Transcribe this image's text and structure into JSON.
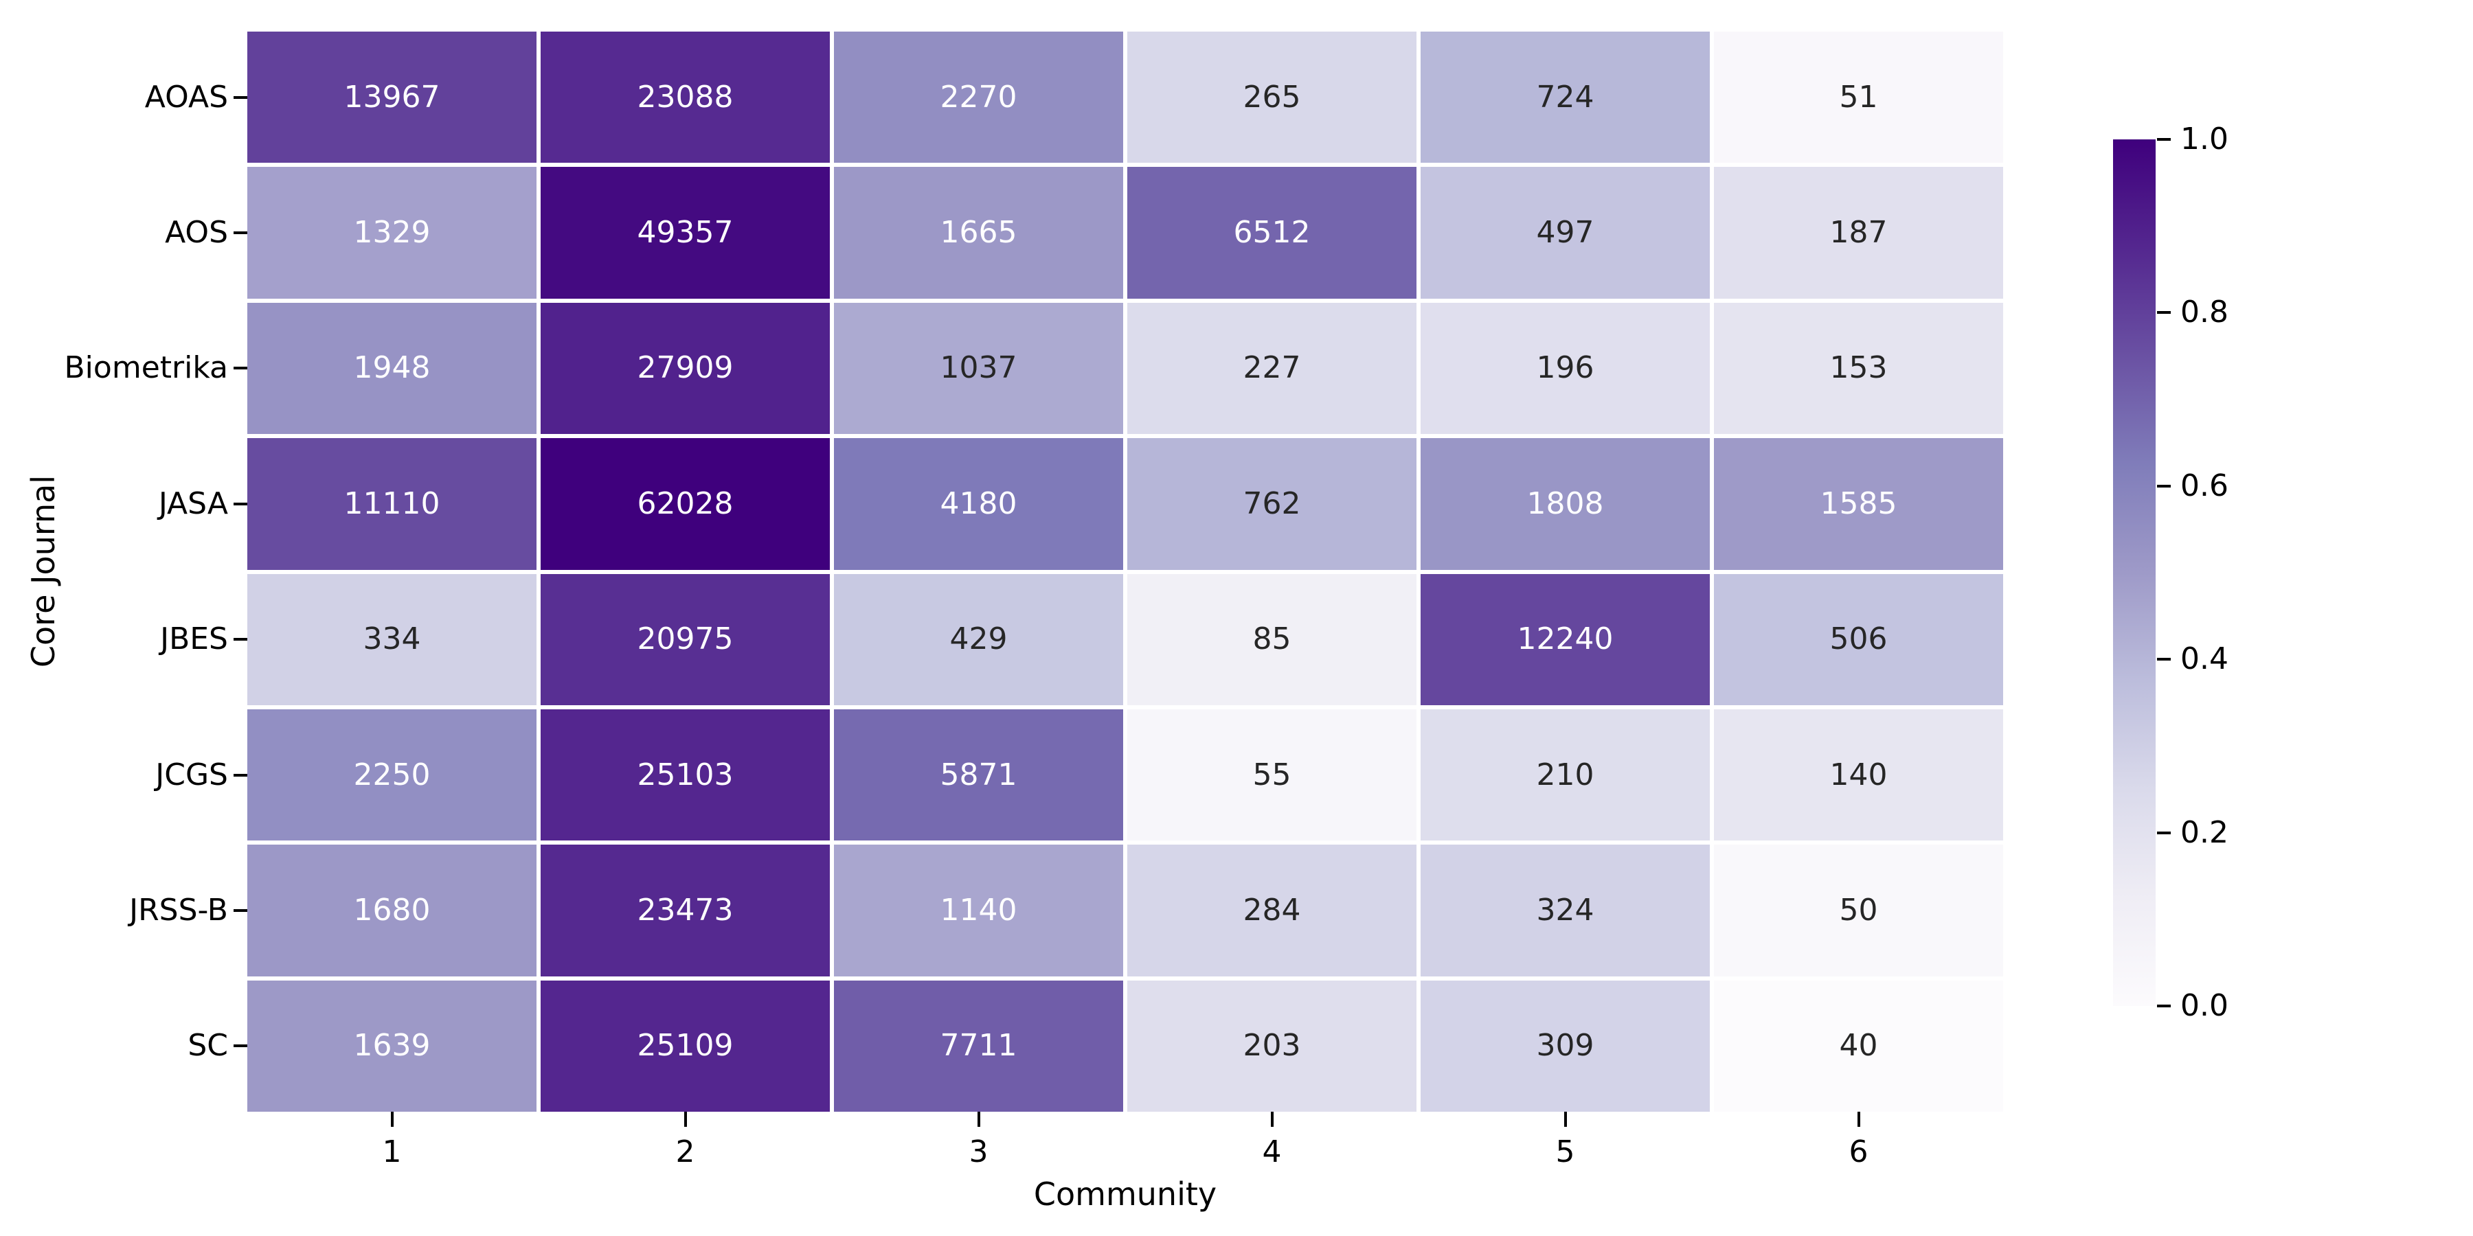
{
  "chart_data": {
    "type": "heatmap",
    "title": "",
    "xlabel": "Community",
    "ylabel": "Core Journal",
    "rows": [
      "AOAS",
      "AOS",
      "Biometrika",
      "JASA",
      "JBES",
      "JCGS",
      "JRSS-B",
      "SC"
    ],
    "columns": [
      "1",
      "2",
      "3",
      "4",
      "5",
      "6"
    ],
    "values": [
      [
        13967,
        23088,
        2270,
        265,
        724,
        51
      ],
      [
        1329,
        49357,
        1665,
        6512,
        497,
        187
      ],
      [
        1948,
        27909,
        1037,
        227,
        196,
        153
      ],
      [
        11110,
        62028,
        4180,
        762,
        1808,
        1585
      ],
      [
        334,
        20975,
        429,
        85,
        12240,
        506
      ],
      [
        2250,
        25103,
        5871,
        55,
        210,
        140
      ],
      [
        1680,
        23473,
        1140,
        284,
        324,
        50
      ],
      [
        1639,
        25109,
        7711,
        203,
        309,
        40
      ]
    ],
    "colormap": "Purples",
    "color_scale": "log",
    "legend_position": "right",
    "colorbar": {
      "ticks": [
        "1.0",
        "0.8",
        "0.6",
        "0.4",
        "0.2",
        "0.0"
      ],
      "range": [
        0.0,
        1.0
      ]
    }
  },
  "colors": {
    "background": "#ffffff",
    "annotation_light": "#ffffff",
    "annotation_dark": "#262626",
    "tick_color": "#000000",
    "cmap_stops": [
      "#fcfbfd",
      "#efedf5",
      "#dadaeb",
      "#bcbddc",
      "#9e9ac8",
      "#807dba",
      "#6a51a3",
      "#54278f",
      "#3f007d"
    ]
  }
}
